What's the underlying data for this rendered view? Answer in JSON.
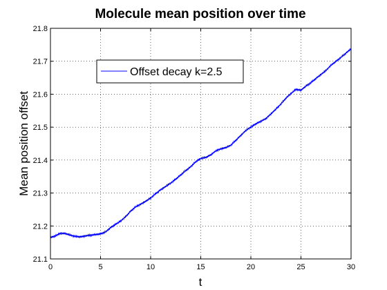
{
  "chart_data": {
    "type": "line",
    "title": "Molecule mean position over time",
    "xlabel": "t",
    "ylabel": "Mean position offset",
    "xlim": [
      0,
      30
    ],
    "ylim": [
      21.1,
      21.8
    ],
    "x_ticks": [
      0,
      5,
      10,
      15,
      20,
      25,
      30
    ],
    "y_ticks": [
      21.1,
      21.2,
      21.3,
      21.4,
      21.5,
      21.6,
      21.7,
      21.8
    ],
    "grid": true,
    "legend_position": "upper-left",
    "series": [
      {
        "name": "Offset decay k=2.5",
        "color": "#0000ff",
        "x": [
          0,
          0.5,
          1,
          1.5,
          2,
          2.5,
          3,
          3.5,
          4,
          4.5,
          5,
          5.5,
          6,
          6.5,
          7,
          7.5,
          8,
          8.5,
          9,
          9.5,
          10,
          10.5,
          11,
          11.5,
          12,
          12.5,
          13,
          13.5,
          14,
          14.5,
          15,
          15.5,
          16,
          16.5,
          17,
          17.5,
          18,
          18.5,
          19,
          19.5,
          20,
          20.5,
          21,
          21.5,
          22,
          22.5,
          23,
          23.5,
          24,
          24.5,
          25,
          25.5,
          26,
          26.5,
          27,
          27.5,
          28,
          28.5,
          29,
          29.5,
          30
        ],
        "y": [
          21.165,
          21.17,
          21.178,
          21.177,
          21.172,
          21.168,
          21.167,
          21.17,
          21.172,
          21.174,
          21.176,
          21.182,
          21.195,
          21.205,
          21.215,
          21.228,
          21.245,
          21.258,
          21.266,
          21.275,
          21.285,
          21.298,
          21.31,
          21.32,
          21.33,
          21.342,
          21.355,
          21.368,
          21.38,
          21.395,
          21.405,
          21.408,
          21.416,
          21.428,
          21.434,
          21.438,
          21.445,
          21.46,
          21.475,
          21.49,
          21.5,
          21.51,
          21.518,
          21.526,
          21.54,
          21.555,
          21.57,
          21.588,
          21.602,
          21.615,
          21.612,
          21.625,
          21.635,
          21.648,
          21.66,
          21.672,
          21.688,
          21.7,
          21.712,
          21.725,
          21.738
        ]
      }
    ]
  }
}
